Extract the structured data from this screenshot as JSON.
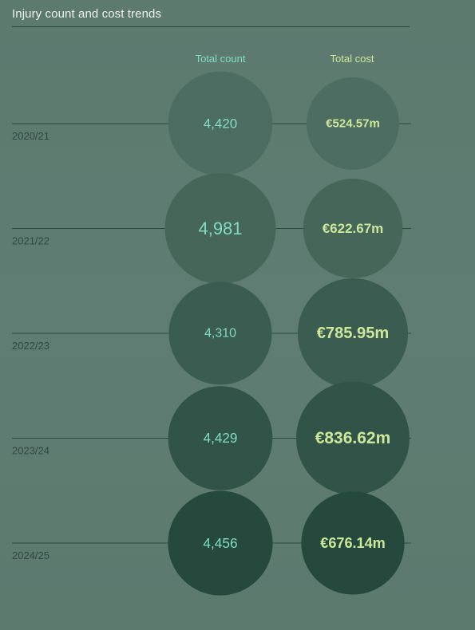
{
  "chart_data": {
    "type": "bubble",
    "title": "Injury count and cost trends",
    "columns": [
      "Total count",
      "Total cost"
    ],
    "categories": [
      "2020/21",
      "2021/22",
      "2022/23",
      "2023/24",
      "2024/25"
    ],
    "series": [
      {
        "name": "Total count",
        "values": [
          4420,
          4981,
          4310,
          4429,
          4456
        ],
        "labels": [
          "4,420",
          "4,981",
          "4,310",
          "4,429",
          "4,456"
        ]
      },
      {
        "name": "Total cost",
        "values": [
          524.57,
          622.67,
          785.95,
          836.62,
          676.14
        ],
        "labels": [
          "€524.57m",
          "€622.67m",
          "€785.95m",
          "€836.62m",
          "€676.14m"
        ]
      }
    ]
  },
  "colors": {
    "count_text": "#80dcc2",
    "cost_text": "#cde79b",
    "bubble_fills": [
      "#4d6d62",
      "#456659",
      "#3b5c50",
      "#325347",
      "#26493d"
    ],
    "connector": "#2c4840"
  }
}
